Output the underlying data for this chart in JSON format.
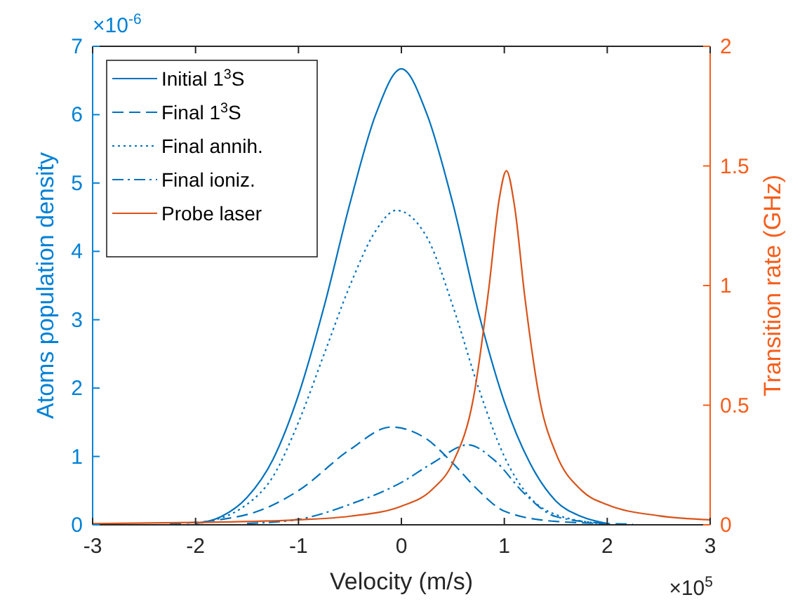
{
  "chart_data": {
    "type": "line",
    "xlabel": "Velocity (m/s)",
    "ylabel": "Atoms population density",
    "y2label": "Transition rate (GHz)",
    "xlim": [
      -3,
      3
    ],
    "xticks": [
      -3,
      -2,
      -1,
      0,
      1,
      2,
      3
    ],
    "ylim": [
      0,
      7
    ],
    "yticks": [
      0,
      1,
      2,
      3,
      4,
      5,
      6,
      7
    ],
    "y2lim": [
      0,
      2
    ],
    "y2ticks": [
      0,
      0.5,
      1,
      1.5,
      2
    ],
    "legend": "top left",
    "grid": false,
    "annotations": [
      "×10$^{-6}$",
      "×10$^{5}$"
    ],
    "series": [
      {
        "name": "Initial 1$^{3}$S",
        "color": "#0072bd",
        "line_style": "solid",
        "x": [
          -2,
          -1.75,
          -1.5,
          -1.25,
          -1,
          -0.75,
          -0.5,
          -0.25,
          0,
          0.25,
          0.5,
          0.75,
          1,
          1.25,
          1.5,
          1.75,
          2
        ],
        "values": [
          0.02,
          0.12,
          0.4,
          0.95,
          1.9,
          3.2,
          4.7,
          6.0,
          6.67,
          6.0,
          4.7,
          3.1,
          1.8,
          0.9,
          0.35,
          0.12,
          0.02
        ]
      },
      {
        "name": "Final 1$^{3}$S",
        "color": "#0072bd",
        "line_style": "dashed",
        "x": [
          -2.25,
          -1.5,
          -1,
          -0.5,
          -0.1,
          0.25,
          0.5,
          0.75,
          1,
          1.5,
          2.25
        ],
        "values": [
          0.01,
          0.15,
          0.5,
          1.1,
          1.43,
          1.25,
          0.9,
          0.5,
          0.2,
          0.05,
          0.01
        ]
      },
      {
        "name": "Final annih.",
        "color": "#0072bd",
        "line_style": "dotted",
        "x": [
          -2,
          -1.5,
          -1.25,
          -1,
          -0.75,
          -0.5,
          -0.25,
          -0.05,
          0.25,
          0.5,
          0.75,
          1,
          1.25,
          1.5,
          2
        ],
        "values": [
          0.01,
          0.3,
          0.7,
          1.5,
          2.5,
          3.5,
          4.3,
          4.6,
          4.2,
          3.2,
          2.0,
          1.0,
          0.4,
          0.15,
          0.01
        ]
      },
      {
        "name": "Final ioniz.",
        "color": "#0072bd",
        "line_style": "dashdot",
        "x": [
          -1.5,
          -1,
          -0.5,
          0,
          0.3,
          0.65,
          0.9,
          1.2,
          1.5,
          2
        ],
        "values": [
          0.02,
          0.08,
          0.3,
          0.62,
          0.9,
          1.17,
          0.95,
          0.45,
          0.12,
          0.02
        ]
      },
      {
        "name": "Probe laser",
        "color": "#d95319",
        "line_style": "solid",
        "axis": "y2",
        "x": [
          -3,
          -2,
          -1,
          -0.5,
          0,
          0.3,
          0.5,
          0.7,
          0.85,
          0.95,
          1.02,
          1.1,
          1.2,
          1.35,
          1.5,
          1.75,
          2,
          2.5,
          3
        ],
        "values": [
          0.005,
          0.01,
          0.021,
          0.036,
          0.078,
          0.148,
          0.26,
          0.53,
          0.99,
          1.36,
          1.48,
          1.33,
          0.95,
          0.51,
          0.3,
          0.144,
          0.084,
          0.038,
          0.021
        ]
      }
    ]
  }
}
